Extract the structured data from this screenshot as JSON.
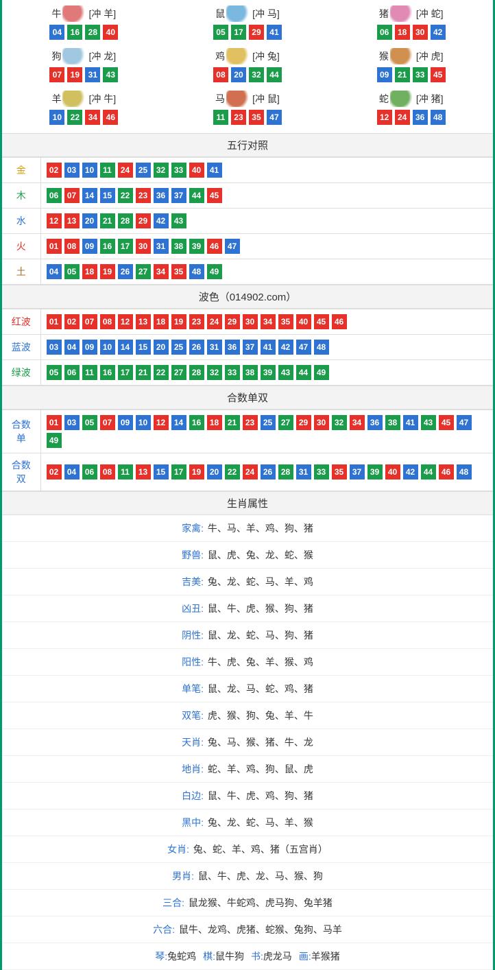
{
  "colors": {
    "red": "#e6302a",
    "blue": "#2e72d2",
    "green": "#1a9c4a",
    "border": "#009a6c"
  },
  "zodiac": [
    {
      "name": "牛",
      "chong": "[冲 羊]",
      "iconColor": "#e07a7a",
      "balls": [
        [
          "04",
          "blue"
        ],
        [
          "16",
          "green"
        ],
        [
          "28",
          "green"
        ],
        [
          "40",
          "red"
        ]
      ]
    },
    {
      "name": "鼠",
      "chong": "[冲 马]",
      "iconColor": "#7ab8e0",
      "balls": [
        [
          "05",
          "green"
        ],
        [
          "17",
          "green"
        ],
        [
          "29",
          "red"
        ],
        [
          "41",
          "blue"
        ]
      ]
    },
    {
      "name": "猪",
      "chong": "[冲 蛇]",
      "iconColor": "#e08ab4",
      "balls": [
        [
          "06",
          "green"
        ],
        [
          "18",
          "red"
        ],
        [
          "30",
          "red"
        ],
        [
          "42",
          "blue"
        ]
      ]
    },
    {
      "name": "狗",
      "chong": "[冲 龙]",
      "iconColor": "#a0c8e0",
      "balls": [
        [
          "07",
          "red"
        ],
        [
          "19",
          "red"
        ],
        [
          "31",
          "blue"
        ],
        [
          "43",
          "green"
        ]
      ]
    },
    {
      "name": "鸡",
      "chong": "[冲 兔]",
      "iconColor": "#e0c060",
      "balls": [
        [
          "08",
          "red"
        ],
        [
          "20",
          "blue"
        ],
        [
          "32",
          "green"
        ],
        [
          "44",
          "green"
        ]
      ]
    },
    {
      "name": "猴",
      "chong": "[冲 虎]",
      "iconColor": "#d09050",
      "balls": [
        [
          "09",
          "blue"
        ],
        [
          "21",
          "green"
        ],
        [
          "33",
          "green"
        ],
        [
          "45",
          "red"
        ]
      ]
    },
    {
      "name": "羊",
      "chong": "[冲 牛]",
      "iconColor": "#d0c060",
      "balls": [
        [
          "10",
          "blue"
        ],
        [
          "22",
          "green"
        ],
        [
          "34",
          "red"
        ],
        [
          "46",
          "red"
        ]
      ]
    },
    {
      "name": "马",
      "chong": "[冲 鼠]",
      "iconColor": "#d07050",
      "balls": [
        [
          "11",
          "green"
        ],
        [
          "23",
          "red"
        ],
        [
          "35",
          "red"
        ],
        [
          "47",
          "blue"
        ]
      ]
    },
    {
      "name": "蛇",
      "chong": "[冲 猪]",
      "iconColor": "#70b060",
      "balls": [
        [
          "12",
          "red"
        ],
        [
          "24",
          "red"
        ],
        [
          "36",
          "blue"
        ],
        [
          "48",
          "blue"
        ]
      ]
    }
  ],
  "wuxing": {
    "title": "五行对照",
    "rows": [
      {
        "label": "金",
        "labelColor": "#d4a017",
        "balls": [
          [
            "02",
            "red"
          ],
          [
            "03",
            "blue"
          ],
          [
            "10",
            "blue"
          ],
          [
            "11",
            "green"
          ],
          [
            "24",
            "red"
          ],
          [
            "25",
            "blue"
          ],
          [
            "32",
            "green"
          ],
          [
            "33",
            "green"
          ],
          [
            "40",
            "red"
          ],
          [
            "41",
            "blue"
          ]
        ]
      },
      {
        "label": "木",
        "labelColor": "#1a9c4a",
        "balls": [
          [
            "06",
            "green"
          ],
          [
            "07",
            "red"
          ],
          [
            "14",
            "blue"
          ],
          [
            "15",
            "blue"
          ],
          [
            "22",
            "green"
          ],
          [
            "23",
            "red"
          ],
          [
            "36",
            "blue"
          ],
          [
            "37",
            "blue"
          ],
          [
            "44",
            "green"
          ],
          [
            "45",
            "red"
          ]
        ]
      },
      {
        "label": "水",
        "labelColor": "#2e72d2",
        "balls": [
          [
            "12",
            "red"
          ],
          [
            "13",
            "red"
          ],
          [
            "20",
            "blue"
          ],
          [
            "21",
            "green"
          ],
          [
            "28",
            "green"
          ],
          [
            "29",
            "red"
          ],
          [
            "42",
            "blue"
          ],
          [
            "43",
            "green"
          ]
        ]
      },
      {
        "label": "火",
        "labelColor": "#e6302a",
        "balls": [
          [
            "01",
            "red"
          ],
          [
            "08",
            "red"
          ],
          [
            "09",
            "blue"
          ],
          [
            "16",
            "green"
          ],
          [
            "17",
            "green"
          ],
          [
            "30",
            "red"
          ],
          [
            "31",
            "blue"
          ],
          [
            "38",
            "green"
          ],
          [
            "39",
            "green"
          ],
          [
            "46",
            "red"
          ],
          [
            "47",
            "blue"
          ]
        ]
      },
      {
        "label": "土",
        "labelColor": "#a07030",
        "balls": [
          [
            "04",
            "blue"
          ],
          [
            "05",
            "green"
          ],
          [
            "18",
            "red"
          ],
          [
            "19",
            "red"
          ],
          [
            "26",
            "blue"
          ],
          [
            "27",
            "green"
          ],
          [
            "34",
            "red"
          ],
          [
            "35",
            "red"
          ],
          [
            "48",
            "blue"
          ],
          [
            "49",
            "green"
          ]
        ]
      }
    ]
  },
  "bose": {
    "title": "波色（014902.com）",
    "rows": [
      {
        "label": "红波",
        "labelColor": "#e6302a",
        "balls": [
          [
            "01",
            "red"
          ],
          [
            "02",
            "red"
          ],
          [
            "07",
            "red"
          ],
          [
            "08",
            "red"
          ],
          [
            "12",
            "red"
          ],
          [
            "13",
            "red"
          ],
          [
            "18",
            "red"
          ],
          [
            "19",
            "red"
          ],
          [
            "23",
            "red"
          ],
          [
            "24",
            "red"
          ],
          [
            "29",
            "red"
          ],
          [
            "30",
            "red"
          ],
          [
            "34",
            "red"
          ],
          [
            "35",
            "red"
          ],
          [
            "40",
            "red"
          ],
          [
            "45",
            "red"
          ],
          [
            "46",
            "red"
          ]
        ]
      },
      {
        "label": "蓝波",
        "labelColor": "#2e72d2",
        "balls": [
          [
            "03",
            "blue"
          ],
          [
            "04",
            "blue"
          ],
          [
            "09",
            "blue"
          ],
          [
            "10",
            "blue"
          ],
          [
            "14",
            "blue"
          ],
          [
            "15",
            "blue"
          ],
          [
            "20",
            "blue"
          ],
          [
            "25",
            "blue"
          ],
          [
            "26",
            "blue"
          ],
          [
            "31",
            "blue"
          ],
          [
            "36",
            "blue"
          ],
          [
            "37",
            "blue"
          ],
          [
            "41",
            "blue"
          ],
          [
            "42",
            "blue"
          ],
          [
            "47",
            "blue"
          ],
          [
            "48",
            "blue"
          ]
        ]
      },
      {
        "label": "绿波",
        "labelColor": "#1a9c4a",
        "balls": [
          [
            "05",
            "green"
          ],
          [
            "06",
            "green"
          ],
          [
            "11",
            "green"
          ],
          [
            "16",
            "green"
          ],
          [
            "17",
            "green"
          ],
          [
            "21",
            "green"
          ],
          [
            "22",
            "green"
          ],
          [
            "27",
            "green"
          ],
          [
            "28",
            "green"
          ],
          [
            "32",
            "green"
          ],
          [
            "33",
            "green"
          ],
          [
            "38",
            "green"
          ],
          [
            "39",
            "green"
          ],
          [
            "43",
            "green"
          ],
          [
            "44",
            "green"
          ],
          [
            "49",
            "green"
          ]
        ]
      }
    ]
  },
  "heshu": {
    "title": "合数单双",
    "rows": [
      {
        "label": "合数单",
        "labelColor": "#2e72d2",
        "balls": [
          [
            "01",
            "red"
          ],
          [
            "03",
            "blue"
          ],
          [
            "05",
            "green"
          ],
          [
            "07",
            "red"
          ],
          [
            "09",
            "blue"
          ],
          [
            "10",
            "blue"
          ],
          [
            "12",
            "red"
          ],
          [
            "14",
            "blue"
          ],
          [
            "16",
            "green"
          ],
          [
            "18",
            "red"
          ],
          [
            "21",
            "green"
          ],
          [
            "23",
            "red"
          ],
          [
            "25",
            "blue"
          ],
          [
            "27",
            "green"
          ],
          [
            "29",
            "red"
          ],
          [
            "30",
            "red"
          ],
          [
            "32",
            "green"
          ],
          [
            "34",
            "red"
          ],
          [
            "36",
            "blue"
          ],
          [
            "38",
            "green"
          ],
          [
            "41",
            "blue"
          ],
          [
            "43",
            "green"
          ],
          [
            "45",
            "red"
          ],
          [
            "47",
            "blue"
          ],
          [
            "49",
            "green"
          ]
        ]
      },
      {
        "label": "合数双",
        "labelColor": "#2e72d2",
        "balls": [
          [
            "02",
            "red"
          ],
          [
            "04",
            "blue"
          ],
          [
            "06",
            "green"
          ],
          [
            "08",
            "red"
          ],
          [
            "11",
            "green"
          ],
          [
            "13",
            "red"
          ],
          [
            "15",
            "blue"
          ],
          [
            "17",
            "green"
          ],
          [
            "19",
            "red"
          ],
          [
            "20",
            "blue"
          ],
          [
            "22",
            "green"
          ],
          [
            "24",
            "red"
          ],
          [
            "26",
            "blue"
          ],
          [
            "28",
            "green"
          ],
          [
            "31",
            "blue"
          ],
          [
            "33",
            "green"
          ],
          [
            "35",
            "red"
          ],
          [
            "37",
            "blue"
          ],
          [
            "39",
            "green"
          ],
          [
            "40",
            "red"
          ],
          [
            "42",
            "blue"
          ],
          [
            "44",
            "green"
          ],
          [
            "46",
            "red"
          ],
          [
            "48",
            "blue"
          ]
        ]
      }
    ]
  },
  "attrs": {
    "title": "生肖属性",
    "rows": [
      {
        "label": "家禽:",
        "value": "牛、马、羊、鸡、狗、猪"
      },
      {
        "label": "野兽:",
        "value": "鼠、虎、兔、龙、蛇、猴"
      },
      {
        "label": "吉美:",
        "value": "兔、龙、蛇、马、羊、鸡"
      },
      {
        "label": "凶丑:",
        "value": "鼠、牛、虎、猴、狗、猪"
      },
      {
        "label": "阴性:",
        "value": "鼠、龙、蛇、马、狗、猪"
      },
      {
        "label": "阳性:",
        "value": "牛、虎、兔、羊、猴、鸡"
      },
      {
        "label": "单笔:",
        "value": "鼠、龙、马、蛇、鸡、猪"
      },
      {
        "label": "双笔:",
        "value": "虎、猴、狗、兔、羊、牛"
      },
      {
        "label": "天肖:",
        "value": "兔、马、猴、猪、牛、龙"
      },
      {
        "label": "地肖:",
        "value": "蛇、羊、鸡、狗、鼠、虎"
      },
      {
        "label": "白边:",
        "value": "鼠、牛、虎、鸡、狗、猪"
      },
      {
        "label": "黑中:",
        "value": "兔、龙、蛇、马、羊、猴"
      },
      {
        "label": "女肖:",
        "value": "兔、蛇、羊、鸡、猪（五宫肖）"
      },
      {
        "label": "男肖:",
        "value": "鼠、牛、虎、龙、马、猴、狗"
      },
      {
        "label": "三合:",
        "value": "鼠龙猴、牛蛇鸡、虎马狗、兔羊猪"
      },
      {
        "label": "六合:",
        "value": "鼠牛、龙鸡、虎猪、蛇猴、兔狗、马羊"
      }
    ],
    "footer": [
      {
        "label": "琴:",
        "value": "兔蛇鸡"
      },
      {
        "label": "棋:",
        "value": "鼠牛狗"
      },
      {
        "label": "书:",
        "value": "虎龙马"
      },
      {
        "label": "画:",
        "value": "羊猴猪"
      }
    ]
  }
}
